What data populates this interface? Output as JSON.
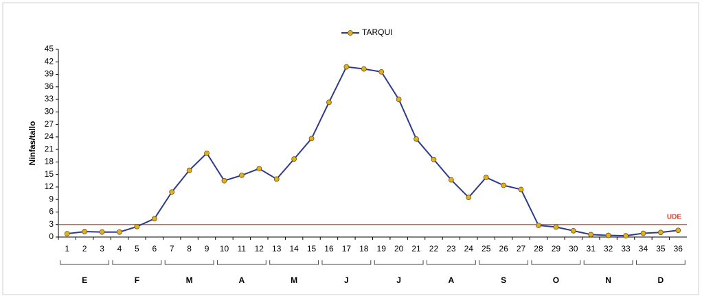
{
  "chart_data": {
    "type": "line",
    "y_label": "Ninfas/tallo",
    "categories": [
      "1",
      "2",
      "3",
      "4",
      "5",
      "6",
      "7",
      "8",
      "9",
      "10",
      "11",
      "12",
      "13",
      "14",
      "15",
      "16",
      "17",
      "18",
      "19",
      "20",
      "21",
      "22",
      "23",
      "24",
      "25",
      "26",
      "27",
      "28",
      "29",
      "30",
      "31",
      "32",
      "33",
      "34",
      "35",
      "36"
    ],
    "series": [
      {
        "name": "TARQUI",
        "color": "#2e3a87",
        "marker_color": "#e0b020",
        "values": [
          0.8,
          1.3,
          1.2,
          1.2,
          2.5,
          4.4,
          10.8,
          16,
          20.1,
          13.5,
          14.8,
          16.4,
          13.9,
          18.7,
          23.6,
          32.3,
          40.8,
          40.3,
          39.6,
          33,
          23.5,
          18.6,
          13.7,
          9.5,
          14.3,
          12.4,
          11.4,
          2.8,
          2.4,
          1.5,
          0.6,
          0.4,
          0.3,
          0.9,
          1.1,
          1.6
        ]
      }
    ],
    "month_labels": [
      "E",
      "F",
      "M",
      "A",
      "M",
      "J",
      "J",
      "A",
      "S",
      "O",
      "N",
      "D"
    ],
    "threshold": {
      "value": 3,
      "label": "UDE",
      "color": "#d9442a"
    },
    "ylim": [
      0,
      45
    ],
    "yticks": [
      0,
      3,
      6,
      9,
      12,
      15,
      18,
      21,
      24,
      27,
      30,
      33,
      36,
      39,
      42,
      45
    ],
    "legend": "top"
  }
}
